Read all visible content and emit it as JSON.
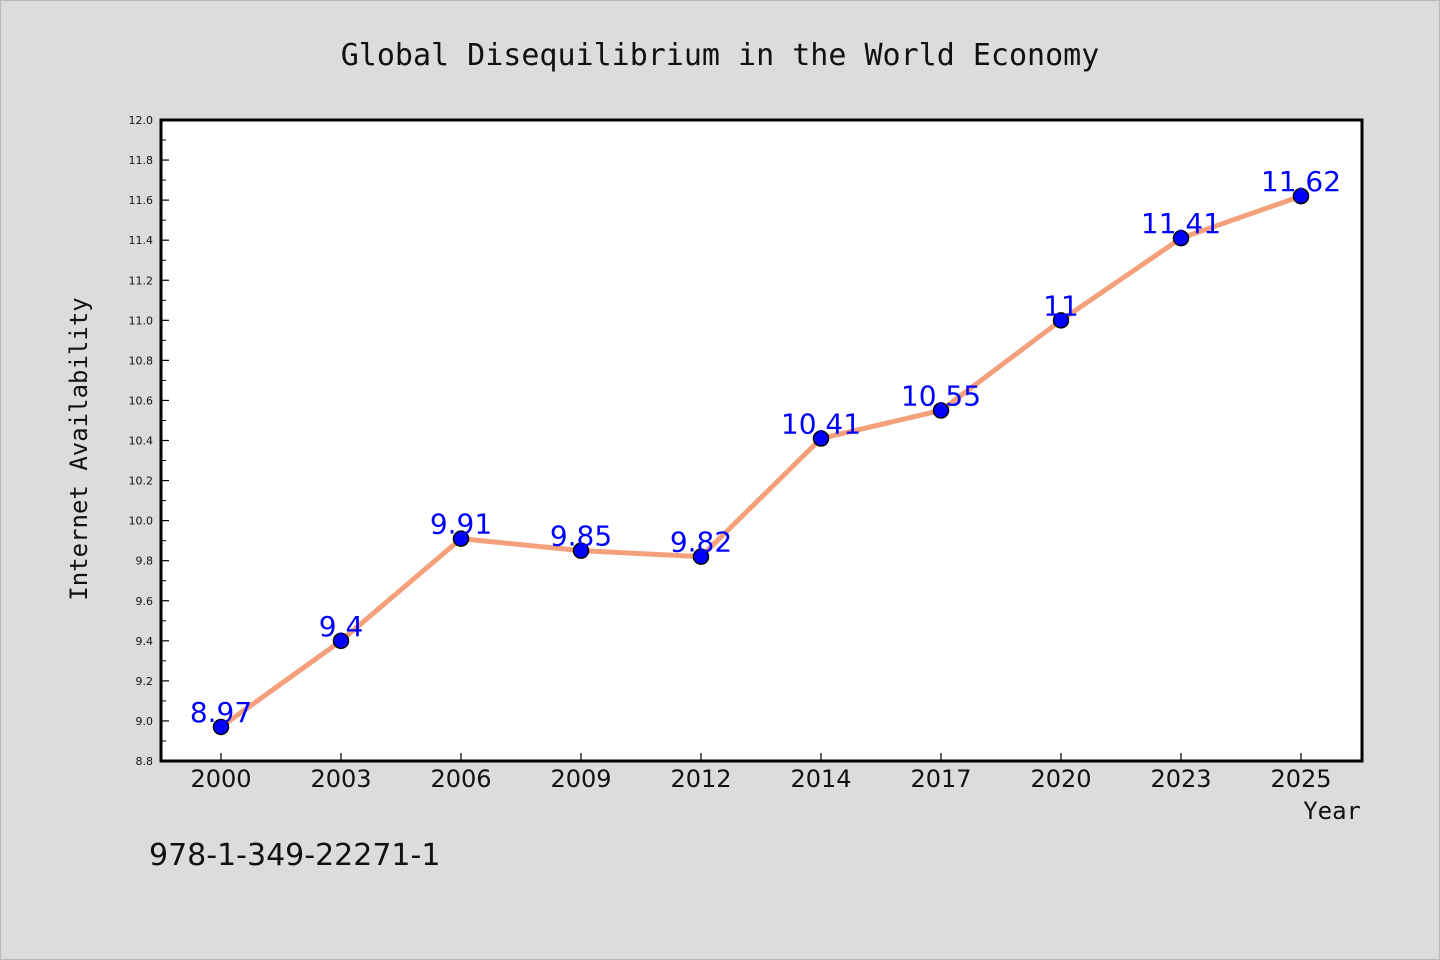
{
  "chart_data": {
    "type": "line",
    "title": "Global Disequilibrium in the World Economy",
    "xlabel": "Year",
    "ylabel": "Internet Availability",
    "categories": [
      "2000",
      "2003",
      "2006",
      "2009",
      "2012",
      "2014",
      "2017",
      "2020",
      "2023",
      "2025"
    ],
    "series": [
      {
        "values": [
          8.97,
          9.4,
          9.91,
          9.85,
          9.82,
          10.41,
          10.55,
          11,
          11.41,
          11.62
        ]
      }
    ],
    "data_labels": [
      "8.97",
      "9.4",
      "9.91",
      "9.85",
      "9.82",
      "10.41",
      "10.55",
      "11",
      "11.41",
      "11.62"
    ],
    "ylim": [
      8.8,
      12.0
    ],
    "yticks": [
      "8.8",
      "9.0",
      "9.2",
      "9.4",
      "9.6",
      "9.8",
      "10.0",
      "10.2",
      "10.4",
      "10.6",
      "10.8",
      "11.0",
      "11.2",
      "11.4",
      "11.6",
      "11.8",
      "12.0"
    ],
    "grid": false,
    "legend": "none",
    "colors": {
      "line": "#f4a07a",
      "marker": "#0000ff",
      "label": "#0000ff",
      "plot_background": "#ffffff",
      "figure_background": "#dcdcdc"
    }
  },
  "footer": {
    "text": "978-1-349-22271-1"
  }
}
